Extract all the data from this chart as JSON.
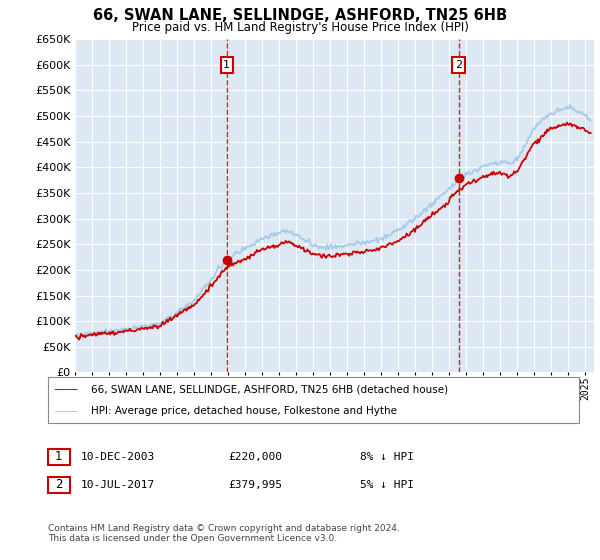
{
  "title": "66, SWAN LANE, SELLINDGE, ASHFORD, TN25 6HB",
  "subtitle": "Price paid vs. HM Land Registry's House Price Index (HPI)",
  "legend_line1": "66, SWAN LANE, SELLINDGE, ASHFORD, TN25 6HB (detached house)",
  "legend_line2": "HPI: Average price, detached house, Folkestone and Hythe",
  "sale1_date": "10-DEC-2003",
  "sale1_price": "£220,000",
  "sale1_hpi": "8% ↓ HPI",
  "sale2_date": "10-JUL-2017",
  "sale2_price": "£379,995",
  "sale2_hpi": "5% ↓ HPI",
  "footer": "Contains HM Land Registry data © Crown copyright and database right 2024.\nThis data is licensed under the Open Government Licence v3.0.",
  "hpi_color": "#a8cce8",
  "price_color": "#cc0000",
  "background_plot": "#dce9f5",
  "grid_color": "#ffffff",
  "ylim": [
    0,
    650000
  ],
  "yticks": [
    0,
    50000,
    100000,
    150000,
    200000,
    250000,
    300000,
    350000,
    400000,
    450000,
    500000,
    550000,
    600000,
    650000
  ],
  "sale1_year": 2003.92,
  "sale1_value": 220000,
  "sale2_year": 2017.54,
  "sale2_value": 379995
}
